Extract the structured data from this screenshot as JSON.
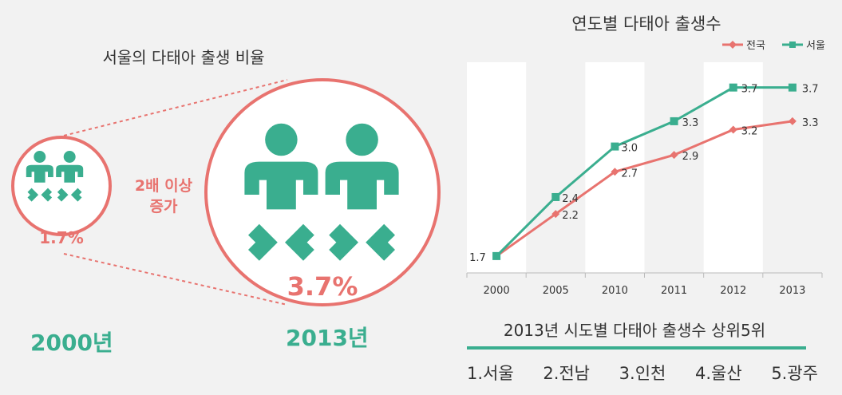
{
  "left_title": "서울의 다태아 출생 비율",
  "increase_label_1": "2배 이상",
  "increase_label_2": "증가",
  "rate_2000": "1.7%",
  "rate_2013": "3.7%",
  "year_2000": "2000년",
  "year_2013": "2013년",
  "ranking": {
    "title": "2013년 시도별 다태아 출생수 상위5위",
    "items": [
      "1.서울",
      "2.전남",
      "3.인천",
      "4.울산",
      "5.광주"
    ]
  },
  "colors": {
    "accent_red": "#e8736f",
    "accent_green": "#3aae8f"
  },
  "chart_data": {
    "type": "line",
    "title": "연도별 다태아 출생수",
    "categories": [
      "2000",
      "2005",
      "2010",
      "2011",
      "2012",
      "2013"
    ],
    "series": [
      {
        "name": "전국",
        "values": [
          1.7,
          2.2,
          2.7,
          2.9,
          3.2,
          3.3
        ],
        "color": "#e8736f",
        "marker": "diamond"
      },
      {
        "name": "서울",
        "values": [
          1.7,
          2.4,
          3.0,
          3.3,
          3.7,
          3.7
        ],
        "color": "#3aae8f",
        "marker": "square"
      }
    ],
    "data_labels": [
      {
        "category": "2000",
        "text": "1.7"
      },
      {
        "category": "2005",
        "text": "2.4"
      },
      {
        "category": "2005",
        "text": "2.2"
      },
      {
        "category": "2010",
        "text": "3.0"
      },
      {
        "category": "2010",
        "text": "2.7"
      },
      {
        "category": "2011",
        "text": "3.3"
      },
      {
        "category": "2011",
        "text": "2.9"
      },
      {
        "category": "2012",
        "text": "3.7"
      },
      {
        "category": "2012",
        "text": "3.2"
      },
      {
        "category": "2013",
        "text": "3.7"
      },
      {
        "category": "2013",
        "text": "3.3"
      }
    ],
    "ylim": [
      1.5,
      4.0
    ],
    "legend": "top-right",
    "grid": false
  }
}
